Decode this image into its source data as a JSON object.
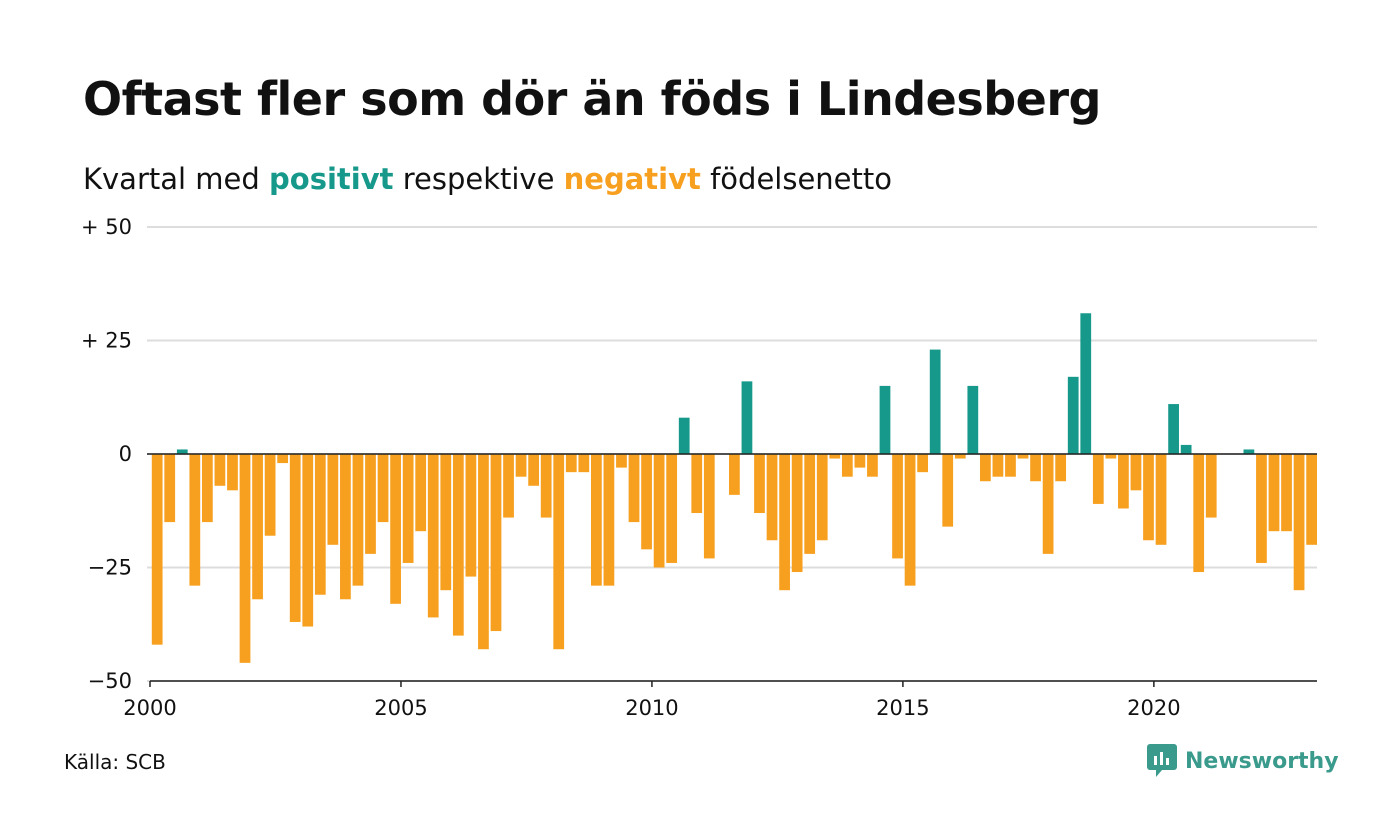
{
  "title": "Oftast fler som dör än föds i Lindesberg",
  "subtitle": {
    "before": "Kvartal med",
    "positive_word": "positivt",
    "middle": "respektive",
    "negative_word": "negativt",
    "after": "födelsenetto"
  },
  "source": "Källa: SCB",
  "brand": "Newsworthy",
  "colors": {
    "positive": "#16988a",
    "negative": "#f7a01f",
    "grid": "#dddddd",
    "brand": "#3a9a8c"
  },
  "chart_data": {
    "type": "bar",
    "start_year": 2000,
    "points_per_year": 4,
    "ylim": [
      -50,
      50
    ],
    "yticks": [
      {
        "value": 50,
        "label": "+ 50"
      },
      {
        "value": 25,
        "label": "+ 25"
      },
      {
        "value": 0,
        "label": "0"
      },
      {
        "value": -25,
        "label": "−25"
      },
      {
        "value": -50,
        "label": "−50"
      }
    ],
    "xticks": [
      "2000",
      "2005",
      "2010",
      "2015",
      "2020"
    ],
    "grid": true,
    "values": [
      -42,
      -15,
      1,
      -29,
      -15,
      -7,
      -8,
      -46,
      -32,
      -18,
      -2,
      -37,
      -38,
      -31,
      -20,
      -32,
      -29,
      -22,
      -15,
      -33,
      -24,
      -17,
      -36,
      -30,
      -40,
      -27,
      -43,
      -39,
      -14,
      -5,
      -7,
      -14,
      -43,
      -4,
      -4,
      -29,
      -29,
      -3,
      -15,
      -21,
      -25,
      -24,
      8,
      -13,
      -23,
      0,
      -9,
      16,
      -13,
      -19,
      -30,
      -26,
      -22,
      -19,
      -1,
      -5,
      -3,
      -5,
      15,
      -23,
      -29,
      -4,
      23,
      -16,
      -1,
      15,
      -6,
      -5,
      -5,
      -1,
      -6,
      -22,
      -6,
      17,
      31,
      -11,
      -1,
      -12,
      -8,
      -19,
      -20,
      11,
      2,
      -26,
      -14,
      0,
      0,
      1,
      -24,
      -17,
      -17,
      -30,
      -20
    ]
  }
}
